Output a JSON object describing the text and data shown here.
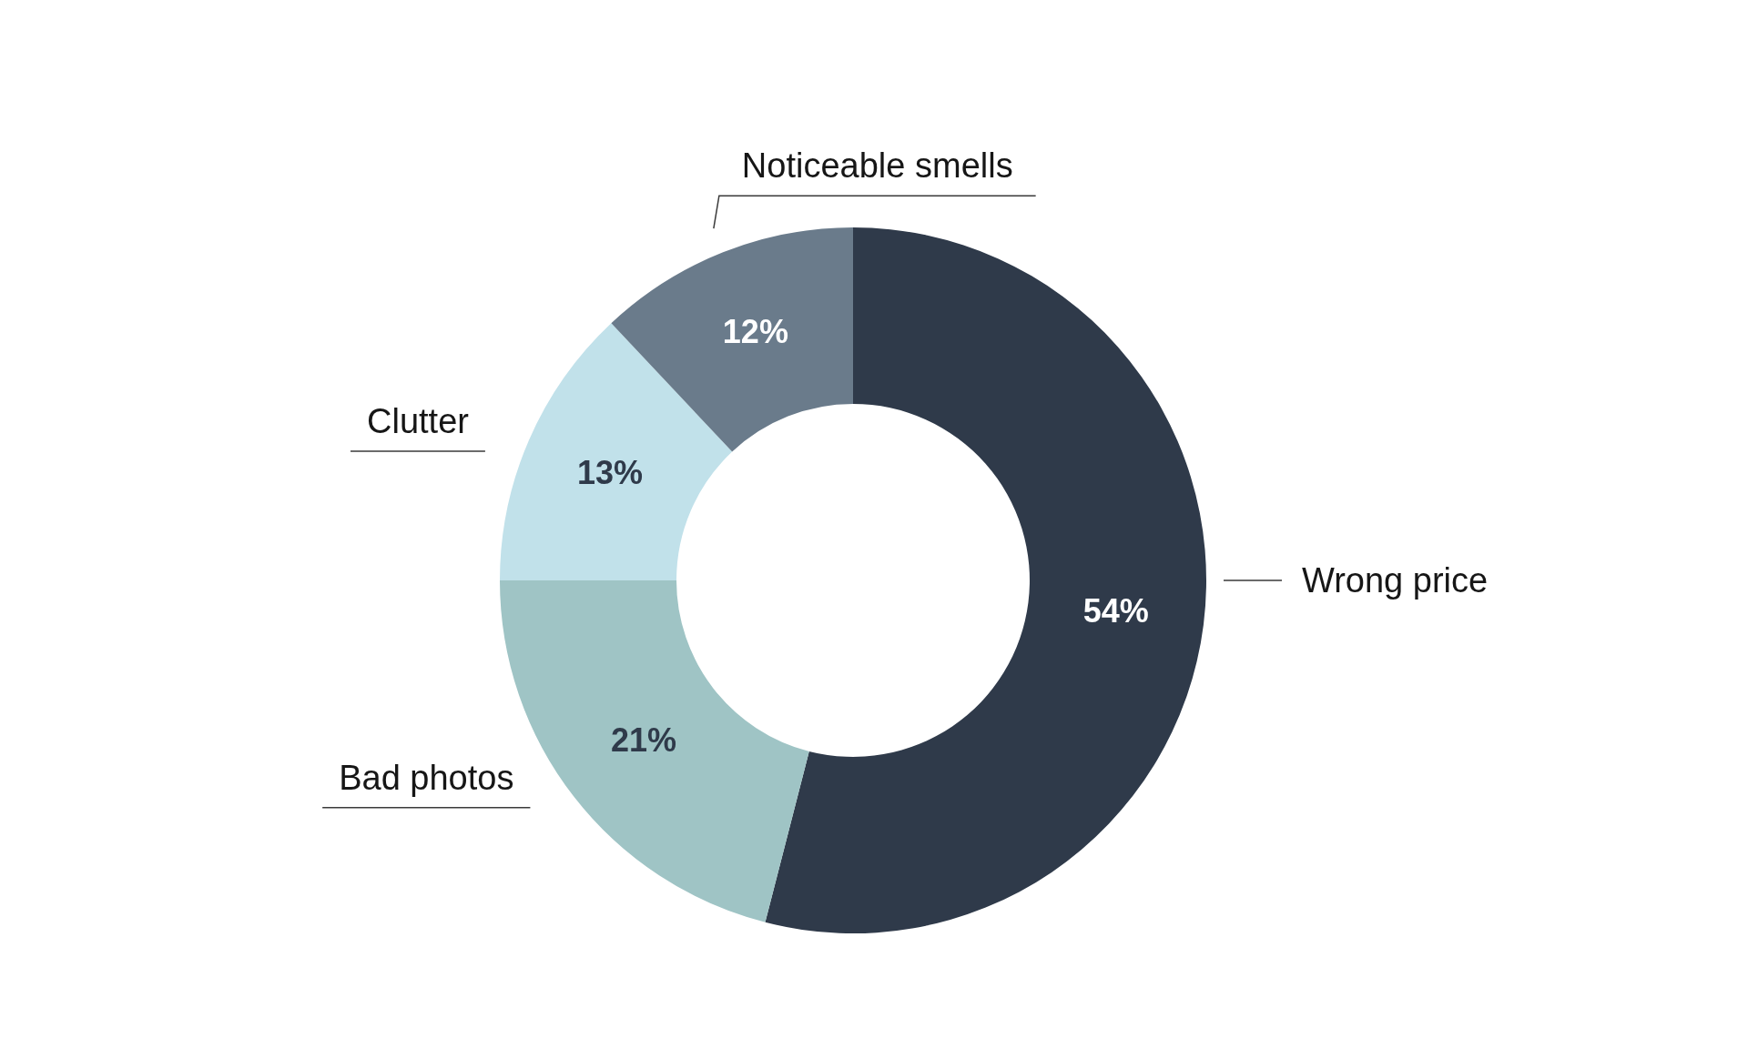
{
  "chart_data": {
    "type": "donut",
    "categories": [
      "Wrong price",
      "Bad photos",
      "Clutter",
      "Noticeable smells"
    ],
    "values": [
      54,
      21,
      13,
      12
    ],
    "colors": [
      "#2f3a4a",
      "#9fc4c5",
      "#c1e1ea",
      "#6a7b8b"
    ],
    "value_labels": [
      "54%",
      "21%",
      "13%",
      "12%"
    ]
  }
}
